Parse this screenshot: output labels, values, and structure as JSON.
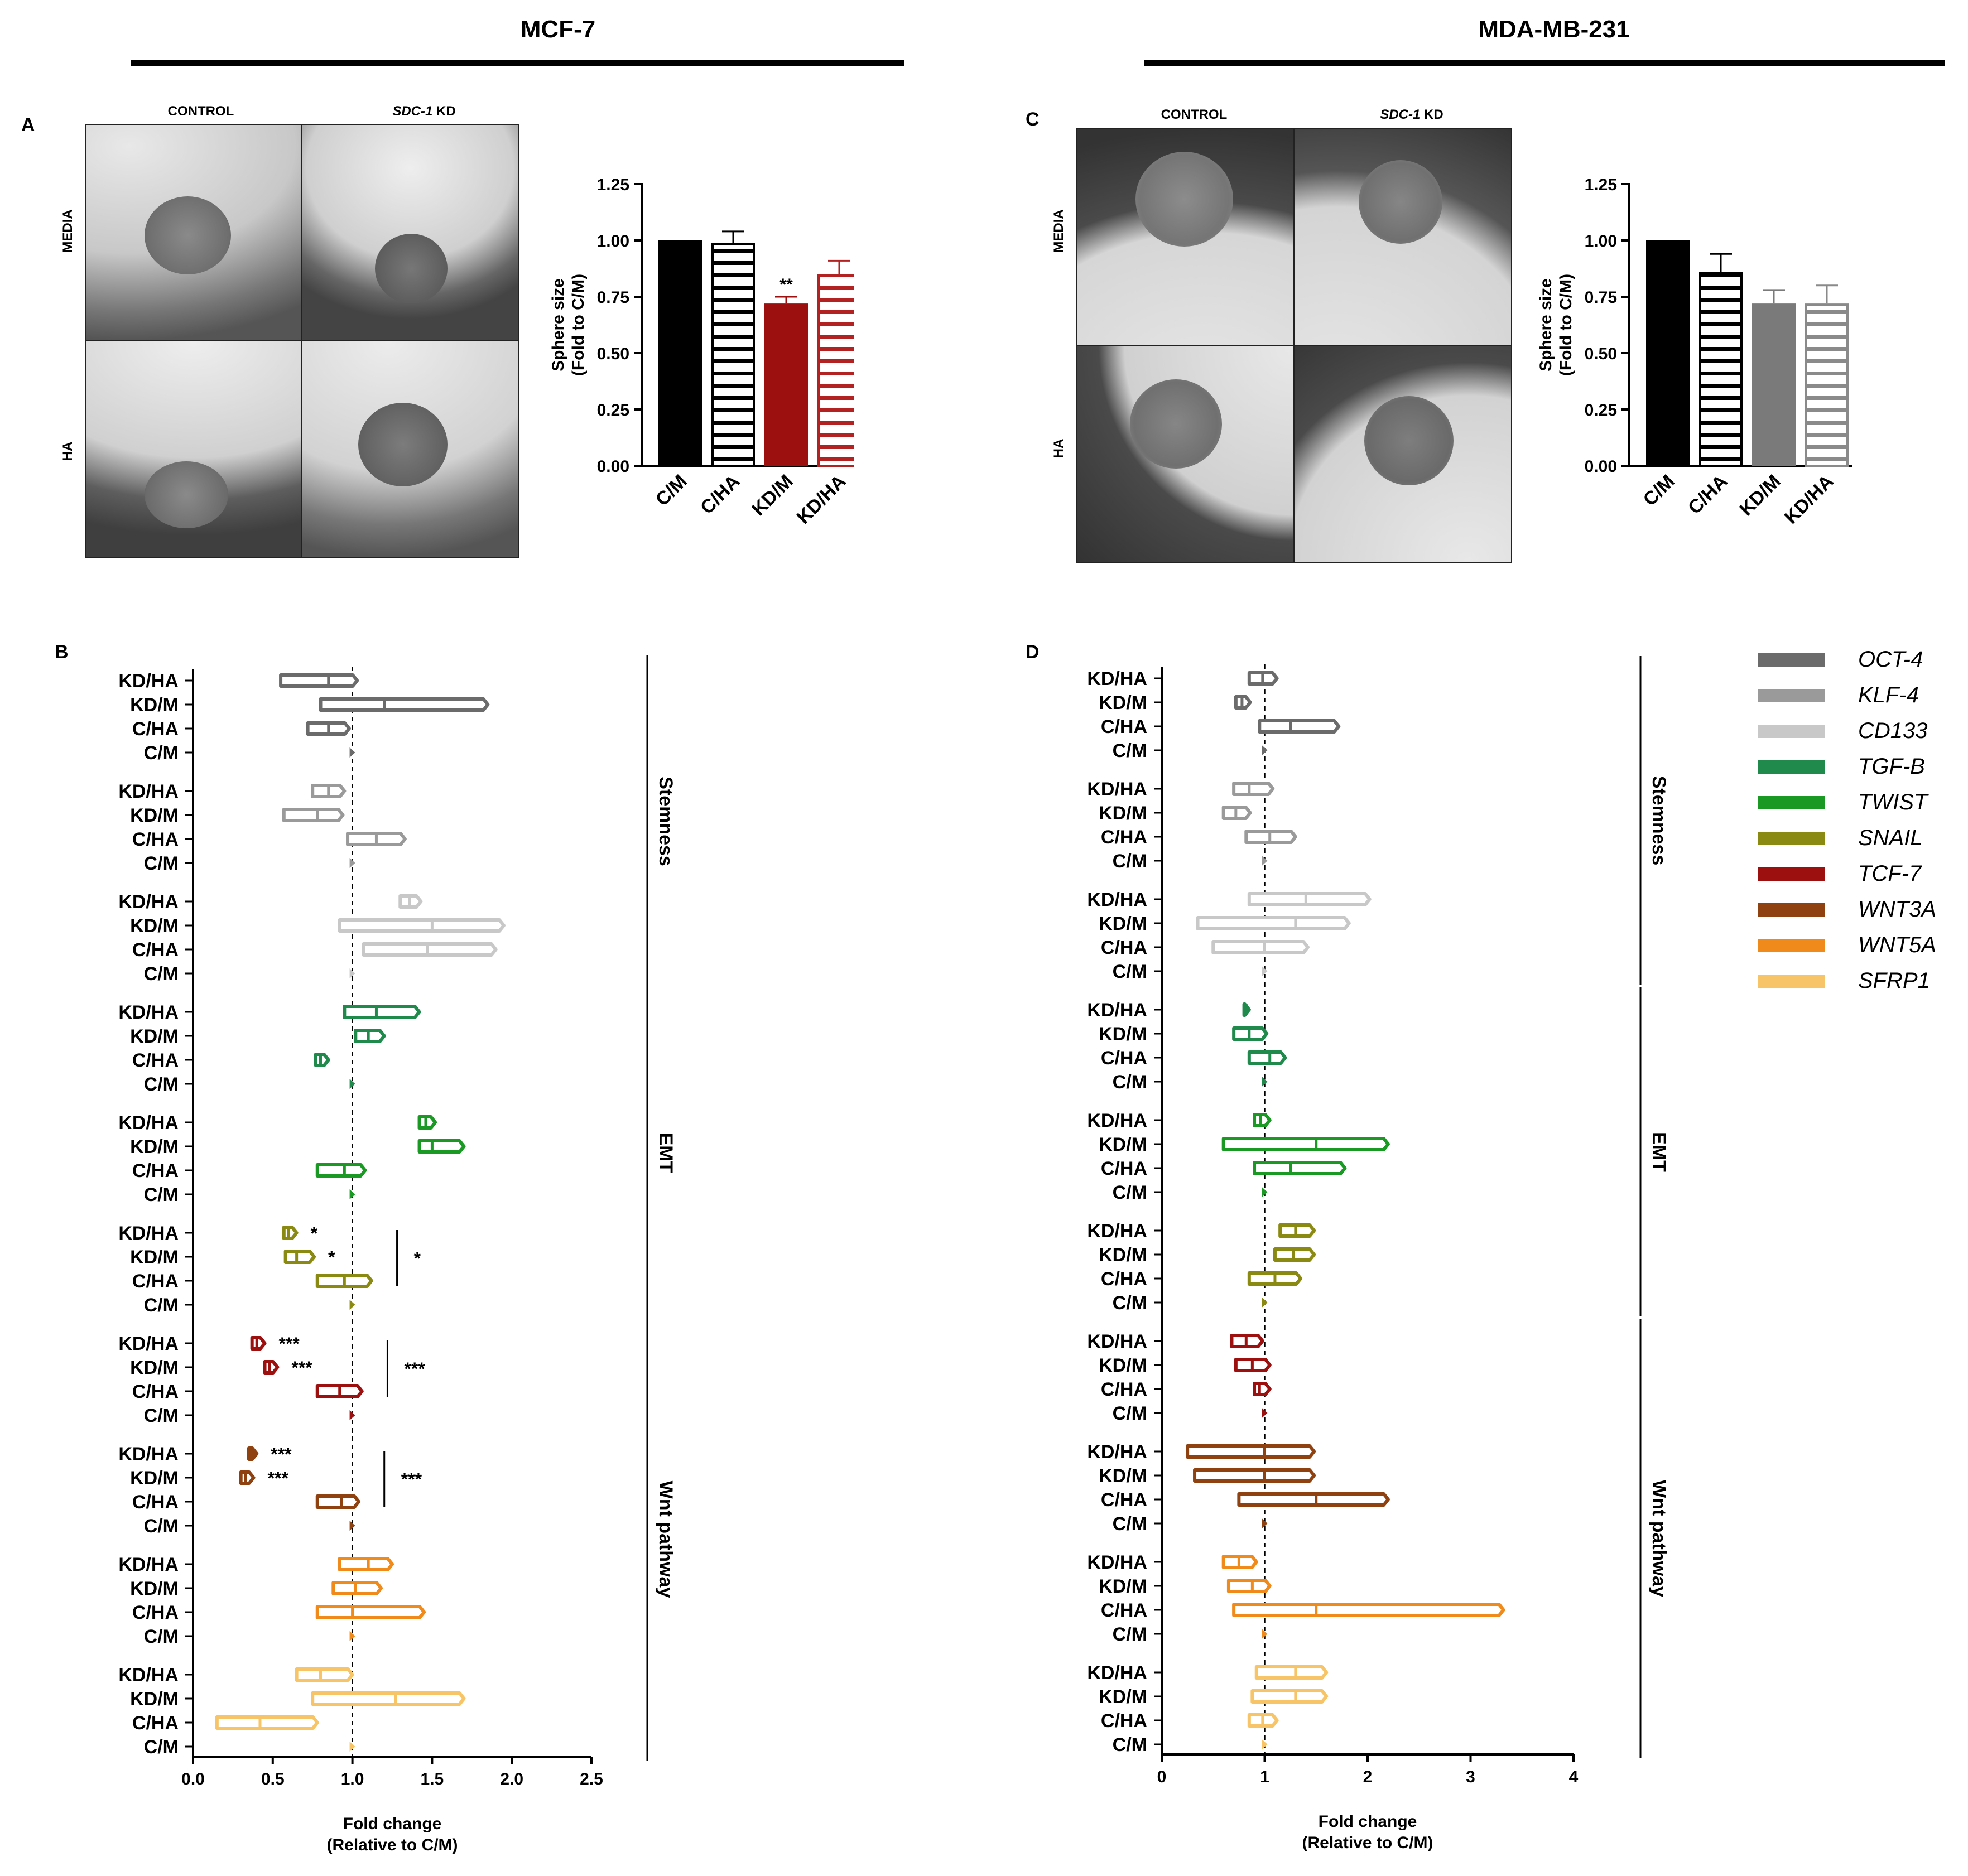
{
  "titles": {
    "left": "MCF-7",
    "right": "MDA-MB-231"
  },
  "panels": {
    "a": "A",
    "b": "B",
    "c": "C",
    "d": "D"
  },
  "micrographs": {
    "col_control": "CONTROL",
    "col_kd_gene": "SDC-1",
    "col_kd_suffix": " KD",
    "row_media": "MEDIA",
    "row_ha": "HA"
  },
  "colors": {
    "OCT-4": "#6b6b6b",
    "KLF-4": "#9a9a9a",
    "CD133": "#c8c8c8",
    "TGF-B": "#1f8a4c",
    "TWIST": "#1a9a24",
    "SNAIL": "#8a8a12",
    "TCF-7": "#9c1010",
    "WNT3A": "#8f4210",
    "WNT5A": "#f08a1a",
    "SFRP1": "#f7c468"
  },
  "chart_data": [
    {
      "id": "A",
      "type": "bar",
      "ylabel_line1": "Sphere size",
      "ylabel_line2": "(Fold to C/M)",
      "ylim": [
        0,
        1.25
      ],
      "yticks": [
        "0.00",
        "0.25",
        "0.50",
        "0.75",
        "1.00",
        "1.25"
      ],
      "categories": [
        "C/M",
        "C/HA",
        "KD/M",
        "KD/HA"
      ],
      "values": [
        1.0,
        0.99,
        0.72,
        0.85
      ],
      "errors": [
        0,
        0.05,
        0.03,
        0.06
      ],
      "colors": [
        "#000000",
        "#000000",
        "#9c1010",
        "#b22222"
      ],
      "styles": [
        "solid",
        "striped",
        "solid",
        "striped"
      ],
      "annotations": [
        "",
        "",
        "**",
        ""
      ]
    },
    {
      "id": "C",
      "type": "bar",
      "ylabel_line1": "Sphere size",
      "ylabel_line2": "(Fold to C/M)",
      "ylim": [
        0,
        1.25
      ],
      "yticks": [
        "0.00",
        "0.25",
        "0.50",
        "0.75",
        "1.00",
        "1.25"
      ],
      "categories": [
        "C/M",
        "C/HA",
        "KD/M",
        "KD/HA"
      ],
      "values": [
        1.0,
        0.86,
        0.72,
        0.72
      ],
      "errors": [
        0,
        0.08,
        0.06,
        0.08
      ],
      "colors": [
        "#000000",
        "#000000",
        "#7a7a7a",
        "#8a8a8a"
      ],
      "styles": [
        "solid",
        "striped",
        "solid",
        "striped"
      ],
      "annotations": [
        "",
        "",
        "",
        ""
      ]
    },
    {
      "id": "B",
      "type": "bar",
      "orientation": "horizontal floating",
      "xlabel_line1": "Fold change",
      "xlabel_line2": "(Relative to C/M)",
      "xlim": [
        0,
        2.5
      ],
      "xticks": [
        "0.0",
        "0.5",
        "1.0",
        "1.5",
        "2.0",
        "2.5"
      ],
      "row_labels": [
        "KD/HA",
        "KD/M",
        "C/HA",
        "C/M"
      ],
      "sections": [
        {
          "name": "Stemness",
          "genes": [
            "OCT-4",
            "KLF-4",
            "CD133"
          ]
        },
        {
          "name": "EMT",
          "genes": [
            "TGF-B",
            "TWIST",
            "SNAIL"
          ]
        },
        {
          "name": "Wnt pathway",
          "genes": [
            "TCF-7",
            "WNT3A",
            "WNT5A",
            "SFRP1"
          ]
        }
      ],
      "genes": [
        {
          "gene": "OCT-4",
          "bars": [
            [
              0.55,
              0.85,
              1.03
            ],
            [
              0.8,
              1.2,
              1.85
            ],
            [
              0.72,
              0.85,
              0.98
            ],
            [
              1.0,
              1.0,
              1.0
            ]
          ],
          "stars": [
            "",
            "",
            "",
            ""
          ],
          "group_star": ""
        },
        {
          "gene": "KLF-4",
          "bars": [
            [
              0.75,
              0.85,
              0.95
            ],
            [
              0.57,
              0.78,
              0.94
            ],
            [
              0.97,
              1.15,
              1.33
            ],
            [
              1.0,
              1.0,
              1.0
            ]
          ],
          "stars": [
            "",
            "",
            "",
            ""
          ],
          "group_star": ""
        },
        {
          "gene": "CD133",
          "bars": [
            [
              1.3,
              1.36,
              1.43
            ],
            [
              0.92,
              1.5,
              1.95
            ],
            [
              1.07,
              1.47,
              1.9
            ],
            [
              1.0,
              1.0,
              1.0
            ]
          ],
          "stars": [
            "",
            "",
            "",
            ""
          ],
          "group_star": ""
        },
        {
          "gene": "TGF-B",
          "bars": [
            [
              0.95,
              1.15,
              1.42
            ],
            [
              1.02,
              1.1,
              1.2
            ],
            [
              0.77,
              0.8,
              0.85
            ],
            [
              1.0,
              1.0,
              1.0
            ]
          ],
          "stars": [
            "",
            "",
            "",
            ""
          ],
          "group_star": ""
        },
        {
          "gene": "TWIST",
          "bars": [
            [
              1.42,
              1.46,
              1.52
            ],
            [
              1.42,
              1.5,
              1.7
            ],
            [
              0.78,
              0.95,
              1.08
            ],
            [
              1.0,
              1.0,
              1.0
            ]
          ],
          "stars": [
            "",
            "",
            "",
            ""
          ],
          "group_star": ""
        },
        {
          "gene": "SNAIL",
          "bars": [
            [
              0.57,
              0.6,
              0.65
            ],
            [
              0.58,
              0.65,
              0.76
            ],
            [
              0.78,
              0.95,
              1.12
            ],
            [
              1.0,
              1.0,
              1.0
            ]
          ],
          "stars": [
            "*",
            "*",
            "",
            ""
          ],
          "group_star": "*"
        },
        {
          "gene": "TCF-7",
          "bars": [
            [
              0.37,
              0.4,
              0.45
            ],
            [
              0.45,
              0.48,
              0.53
            ],
            [
              0.78,
              0.92,
              1.06
            ],
            [
              1.0,
              1.0,
              1.0
            ]
          ],
          "stars": [
            "***",
            "***",
            "",
            ""
          ],
          "group_star": "***"
        },
        {
          "gene": "WNT3A",
          "bars": [
            [
              0.35,
              0.37,
              0.4
            ],
            [
              0.3,
              0.33,
              0.38
            ],
            [
              0.78,
              0.93,
              1.04
            ],
            [
              1.0,
              1.0,
              1.0
            ]
          ],
          "stars": [
            "***",
            "***",
            "",
            ""
          ],
          "group_star": "***"
        },
        {
          "gene": "WNT5A",
          "bars": [
            [
              0.92,
              1.1,
              1.25
            ],
            [
              0.88,
              1.02,
              1.18
            ],
            [
              0.78,
              1.0,
              1.45
            ],
            [
              1.0,
              1.0,
              1.0
            ]
          ],
          "stars": [
            "",
            "",
            "",
            ""
          ],
          "group_star": ""
        },
        {
          "gene": "SFRP1",
          "bars": [
            [
              0.65,
              0.8,
              1.0
            ],
            [
              0.75,
              1.27,
              1.7
            ],
            [
              0.15,
              0.42,
              0.78
            ],
            [
              1.0,
              1.0,
              1.0
            ]
          ],
          "stars": [
            "",
            "",
            "",
            ""
          ],
          "group_star": ""
        }
      ]
    },
    {
      "id": "D",
      "type": "bar",
      "orientation": "horizontal floating",
      "xlabel_line1": "Fold change",
      "xlabel_line2": "(Relative to C/M)",
      "xlim": [
        0,
        4
      ],
      "xticks": [
        "0",
        "1",
        "2",
        "3",
        "4"
      ],
      "row_labels": [
        "KD/HA",
        "KD/M",
        "C/HA",
        "C/M"
      ],
      "sections": [
        {
          "name": "Stemness",
          "genes": [
            "OCT-4",
            "KLF-4",
            "CD133"
          ]
        },
        {
          "name": "EMT",
          "genes": [
            "TGF-B",
            "TWIST",
            "SNAIL"
          ]
        },
        {
          "name": "Wnt pathway",
          "genes": [
            "TCF-7",
            "WNT3A",
            "WNT5A",
            "SFRP1"
          ]
        }
      ],
      "genes": [
        {
          "gene": "OCT-4",
          "bars": [
            [
              0.85,
              0.98,
              1.12
            ],
            [
              0.72,
              0.78,
              0.86
            ],
            [
              0.95,
              1.25,
              1.72
            ],
            [
              1.0,
              1.0,
              1.0
            ]
          ]
        },
        {
          "gene": "KLF-4",
          "bars": [
            [
              0.7,
              0.85,
              1.08
            ],
            [
              0.6,
              0.72,
              0.86
            ],
            [
              0.82,
              1.05,
              1.3
            ],
            [
              1.0,
              1.0,
              1.0
            ]
          ]
        },
        {
          "gene": "CD133",
          "bars": [
            [
              0.85,
              1.4,
              2.02
            ],
            [
              0.35,
              1.3,
              1.82
            ],
            [
              0.5,
              1.0,
              1.42
            ],
            [
              1.0,
              1.0,
              1.0
            ]
          ]
        },
        {
          "gene": "TGF-B",
          "bars": [
            [
              0.8,
              0.82,
              0.85
            ],
            [
              0.7,
              0.85,
              1.02
            ],
            [
              0.85,
              1.05,
              1.2
            ],
            [
              1.0,
              1.0,
              1.0
            ]
          ]
        },
        {
          "gene": "TWIST",
          "bars": [
            [
              0.9,
              0.96,
              1.05
            ],
            [
              0.6,
              1.5,
              2.2
            ],
            [
              0.9,
              1.25,
              1.78
            ],
            [
              1.0,
              1.0,
              1.0
            ]
          ]
        },
        {
          "gene": "SNAIL",
          "bars": [
            [
              1.15,
              1.3,
              1.48
            ],
            [
              1.1,
              1.28,
              1.48
            ],
            [
              0.85,
              1.1,
              1.35
            ],
            [
              1.0,
              1.0,
              1.0
            ]
          ]
        },
        {
          "gene": "TCF-7",
          "bars": [
            [
              0.68,
              0.82,
              0.98
            ],
            [
              0.72,
              0.88,
              1.05
            ],
            [
              0.9,
              0.95,
              1.05
            ],
            [
              1.0,
              1.0,
              1.0
            ]
          ]
        },
        {
          "gene": "WNT3A",
          "bars": [
            [
              0.25,
              1.0,
              1.48
            ],
            [
              0.32,
              1.0,
              1.48
            ],
            [
              0.75,
              1.5,
              2.2
            ],
            [
              1.0,
              1.0,
              1.0
            ]
          ]
        },
        {
          "gene": "WNT5A",
          "bars": [
            [
              0.6,
              0.75,
              0.92
            ],
            [
              0.65,
              0.88,
              1.05
            ],
            [
              0.7,
              1.5,
              3.32
            ],
            [
              1.0,
              1.0,
              1.0
            ]
          ]
        },
        {
          "gene": "SFRP1",
          "bars": [
            [
              0.92,
              1.3,
              1.6
            ],
            [
              0.88,
              1.3,
              1.6
            ],
            [
              0.85,
              0.98,
              1.12
            ],
            [
              1.0,
              1.0,
              1.0
            ]
          ]
        }
      ]
    }
  ],
  "legend": [
    "OCT-4",
    "KLF-4",
    "CD133",
    "TGF-B",
    "TWIST",
    "SNAIL",
    "TCF-7",
    "WNT3A",
    "WNT5A",
    "SFRP1"
  ]
}
